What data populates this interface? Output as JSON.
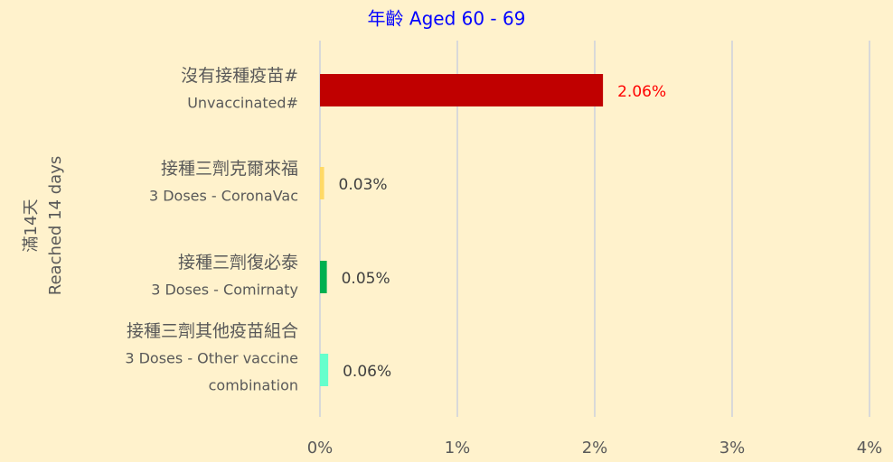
{
  "chart_data": {
    "type": "barh",
    "title": "年齡 Aged 60 - 69",
    "y_label": [
      "滿14天",
      "Reached 14 days"
    ],
    "categories": [
      [
        "沒有接種疫苗#",
        "Unvaccinated#"
      ],
      [
        "接種三劑克爾來福",
        "3 Doses - CoronaVac"
      ],
      [
        "接種三劑復必泰",
        "3 Doses - Comirnaty"
      ],
      [
        "接種三劑其他疫苗組合",
        "3 Doses - Other vaccine",
        "combination"
      ]
    ],
    "values": [
      2.06,
      0.03,
      0.05,
      0.06
    ],
    "value_labels": [
      "2.06%",
      "0.03%",
      "0.05%",
      "0.06%"
    ],
    "colors": [
      "#C00000",
      "#FFD966",
      "#00B050",
      "#66FFCC"
    ],
    "value_label_colors": [
      "#FF0000",
      "#404040",
      "#404040",
      "#404040"
    ],
    "xlim": [
      0,
      4
    ],
    "xticks": [
      {
        "value": 0,
        "label": "0%"
      },
      {
        "value": 1,
        "label": "1%"
      },
      {
        "value": 2,
        "label": "2%"
      },
      {
        "value": 3,
        "label": "3%"
      },
      {
        "value": 4,
        "label": "4%"
      }
    ],
    "grid": true
  }
}
